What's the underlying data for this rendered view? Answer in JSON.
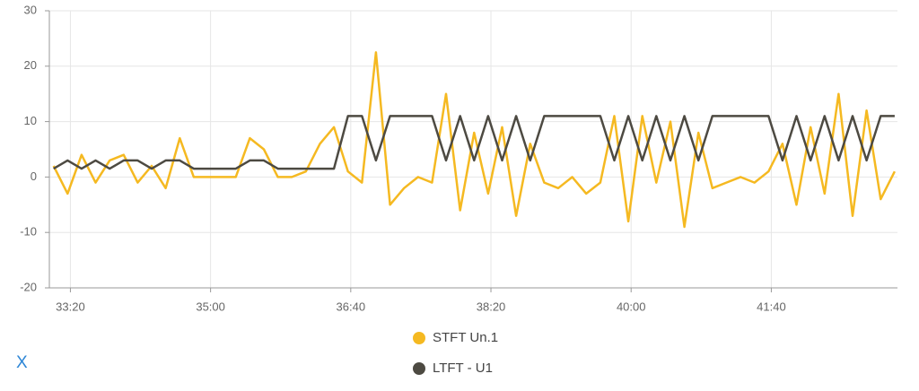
{
  "chart_data": {
    "type": "line",
    "x": [
      1988,
      1998,
      2008,
      2018,
      2028,
      2038,
      2048,
      2058,
      2068,
      2078,
      2088,
      2098,
      2108,
      2118,
      2128,
      2138,
      2148,
      2158,
      2168,
      2178,
      2188,
      2198,
      2208,
      2218,
      2228,
      2238,
      2248,
      2258,
      2268,
      2278,
      2288,
      2298,
      2308,
      2318,
      2328,
      2338,
      2348,
      2358,
      2368,
      2378,
      2388,
      2398,
      2408,
      2418,
      2428,
      2438,
      2448,
      2458,
      2468,
      2478,
      2488,
      2498,
      2508,
      2518,
      2528,
      2538,
      2548,
      2558,
      2568,
      2578,
      2588
    ],
    "series": [
      {
        "name": "STFT Un.1",
        "color": "#f5b921",
        "values": [
          2,
          -3,
          4,
          -1,
          3,
          4,
          -1,
          2,
          -2,
          7,
          0,
          0,
          0,
          0,
          7,
          5,
          0,
          0,
          1,
          6,
          9,
          1,
          -1,
          22.5,
          -5,
          -2,
          0,
          -1,
          15,
          -6,
          8,
          -3,
          9,
          -7,
          6,
          -1,
          -2,
          0,
          -3,
          -1,
          11,
          -8,
          11,
          -1,
          10,
          -9,
          8,
          -2,
          -1,
          0,
          -1,
          1,
          6,
          -5,
          9,
          -3,
          15,
          -7,
          12,
          -4,
          1
        ]
      },
      {
        "name": "LTFT - U1",
        "color": "#4d4a42",
        "values": [
          1.5,
          3,
          1.5,
          3,
          1.5,
          3,
          3,
          1.5,
          3,
          3,
          1.5,
          1.5,
          1.5,
          1.5,
          3,
          3,
          1.5,
          1.5,
          1.5,
          1.5,
          1.5,
          11,
          11,
          3,
          11,
          11,
          11,
          11,
          3,
          11,
          3,
          11,
          3,
          11,
          3,
          11,
          11,
          11,
          11,
          11,
          3,
          11,
          3,
          11,
          3,
          11,
          3,
          11,
          11,
          11,
          11,
          11,
          3,
          11,
          3,
          11,
          3,
          11,
          3,
          11,
          11
        ]
      }
    ],
    "xlim": [
      1985,
      2590
    ],
    "xticks": [
      {
        "value": 2000,
        "label": "33:20"
      },
      {
        "value": 2100,
        "label": "35:00"
      },
      {
        "value": 2200,
        "label": "36:40"
      },
      {
        "value": 2300,
        "label": "38:20"
      },
      {
        "value": 2400,
        "label": "40:00"
      },
      {
        "value": 2500,
        "label": "41:40"
      }
    ],
    "ylim": [
      -20,
      30
    ],
    "yticks": [
      -20,
      -10,
      0,
      10,
      20,
      30
    ],
    "grid": true
  },
  "close_button": "X"
}
